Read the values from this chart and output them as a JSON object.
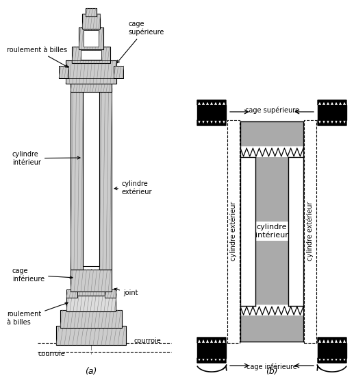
{
  "bg_color": "#ffffff",
  "gray_color": "#aaaaaa",
  "black_color": "#000000",
  "white_color": "#ffffff",
  "fig_width": 5.17,
  "fig_height": 5.54,
  "label_a": "(a)",
  "label_b": "(b)",
  "fs": 7.0,
  "title_a_labels": {
    "roulement_billes_top": "roulement à billes",
    "cage_superieure": "cage\nsupérieure",
    "cylindre_interieur": "cylindre\nintérieur",
    "cylindre_exterieur": "cylindre\nextérieur",
    "cage_inferieure": "cage\ninférieure",
    "roulement_billes_bot": "roulement\nà billes",
    "joint": "joint",
    "courroie_top": "courroie",
    "courroie_bot": "courroie"
  },
  "title_b_labels": {
    "cage_superieure": "cage supérieure",
    "cage_inferieure": "cage inférieure",
    "cylindre_interieur": "cylindre\nintérieur",
    "cylindre_exterieur_left": "cylindre extérieur",
    "cylindre_exterieur_right": "cylindre extérieur"
  }
}
